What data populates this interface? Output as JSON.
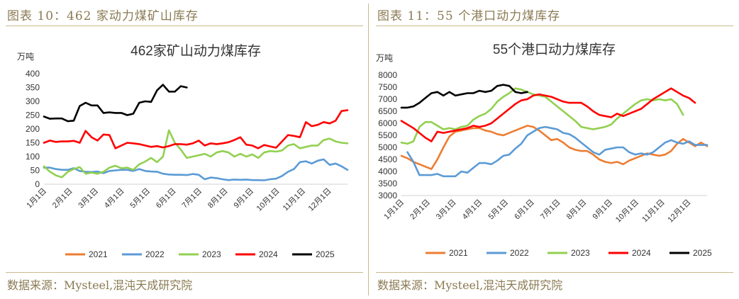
{
  "colors": {
    "2021": "#ed7d31",
    "2022": "#5b9bd5",
    "2023": "#92d050",
    "2024": "#ff0000",
    "2025": "#000000",
    "frame": "#c9b98a",
    "caption": "#8a7a52"
  },
  "left": {
    "figure_label": "图表 10：462 家动力煤矿山库存",
    "source": "数据来源：Mysteel,混沌天成研究院",
    "chart_data": {
      "type": "line",
      "title": "462家矿山动力煤库存",
      "ylabel": "万吨",
      "ylim": [
        0,
        400
      ],
      "yticks": [
        0,
        50,
        100,
        150,
        200,
        250,
        300,
        350,
        400
      ],
      "xtick_labels": [
        "1月1日",
        "2月1日",
        "3月1日",
        "4月1日",
        "5月1日",
        "6月1日",
        "7月1日",
        "8月1日",
        "9月1日",
        "10月1日",
        "11月1日",
        "12月1日"
      ],
      "week_count": 52,
      "legend": [
        "2021",
        "2022",
        "2023",
        "2024",
        "2025"
      ],
      "series": [
        {
          "name": "2021",
          "values": []
        },
        {
          "name": "2022",
          "values": [
            60,
            60,
            55,
            52,
            52,
            58,
            48,
            45,
            44,
            46,
            40,
            48,
            50,
            52,
            52,
            48,
            55,
            48,
            46,
            45,
            38,
            35,
            34,
            34,
            33,
            37,
            34,
            18,
            24,
            22,
            18,
            15,
            17,
            16,
            17,
            15,
            15,
            14,
            18,
            20,
            30,
            45,
            55,
            80,
            83,
            75,
            85,
            90,
            70,
            75,
            65,
            52
          ]
        },
        {
          "name": "2023",
          "values": [
            65,
            45,
            32,
            25,
            45,
            55,
            62,
            38,
            42,
            38,
            45,
            60,
            67,
            58,
            60,
            52,
            72,
            82,
            95,
            80,
            100,
            195,
            150,
            125,
            95,
            100,
            105,
            110,
            100,
            115,
            120,
            115,
            100,
            110,
            100,
            108,
            95,
            115,
            120,
            118,
            122,
            140,
            145,
            130,
            135,
            140,
            140,
            160,
            165,
            155,
            150,
            148
          ]
        },
        {
          "name": "2024",
          "values": [
            150,
            158,
            153,
            155,
            155,
            157,
            150,
            193,
            170,
            158,
            180,
            178,
            130,
            140,
            150,
            148,
            145,
            140,
            135,
            138,
            133,
            138,
            145,
            145,
            143,
            148,
            158,
            140,
            148,
            145,
            148,
            152,
            160,
            170,
            143,
            140,
            130,
            142,
            137,
            132,
            155,
            178,
            175,
            170,
            225,
            210,
            215,
            225,
            220,
            230,
            265,
            268
          ]
        },
        {
          "name": "2025",
          "values": [
            245,
            237,
            238,
            238,
            228,
            230,
            283,
            295,
            285,
            285,
            258,
            260,
            258,
            258,
            250,
            255,
            295,
            300,
            298,
            340,
            360,
            335,
            335,
            355,
            350
          ]
        }
      ]
    }
  },
  "right": {
    "figure_label": "图表 11：55 个港口动力煤库存",
    "source": "数据来源：Mysteel,混沌天成研究院",
    "chart_data": {
      "type": "line",
      "title": "55个港口动力煤库存",
      "ylabel": "万吨",
      "ylim": [
        3000,
        8000
      ],
      "yticks": [
        3000,
        3500,
        4000,
        4500,
        5000,
        5500,
        6000,
        6500,
        7000,
        7500,
        8000
      ],
      "xtick_labels": [
        "1月1日",
        "2月1日",
        "3月1日",
        "4月1日",
        "5月1日",
        "6月1日",
        "7月1日",
        "8月1日",
        "9月1日",
        "10月1日",
        "11月1日",
        "12月1日"
      ],
      "week_count": 52,
      "legend": [
        "2021",
        "2022",
        "2023",
        "2024",
        "2025"
      ],
      "series": [
        {
          "name": "2021",
          "values": [
            4650,
            4550,
            4400,
            4300,
            4200,
            4100,
            4500,
            5000,
            5450,
            5650,
            5700,
            5750,
            5800,
            5800,
            5700,
            5650,
            5550,
            5500,
            5600,
            5700,
            5800,
            5900,
            5850,
            5700,
            5500,
            5300,
            5350,
            5200,
            5000,
            4900,
            4850,
            4850,
            4700,
            4500,
            4400,
            4350,
            4400,
            4300,
            4450,
            4550,
            4650,
            4750,
            4700,
            4650,
            4700,
            4850,
            5150,
            5350,
            5200,
            5050,
            5200,
            5050
          ]
        },
        {
          "name": "2022",
          "values": [
            null,
            4800,
            4400,
            3850,
            3850,
            3850,
            3900,
            3800,
            3800,
            3800,
            4000,
            3950,
            4150,
            4350,
            4350,
            4300,
            4450,
            4650,
            4700,
            4950,
            5150,
            5500,
            5650,
            5800,
            5850,
            5800,
            5750,
            5600,
            5550,
            5400,
            5200,
            5000,
            4800,
            4700,
            4900,
            4950,
            5000,
            5000,
            4800,
            4700,
            4750,
            4700,
            4800,
            5000,
            5200,
            5300,
            5200,
            5150,
            5250,
            5100,
            5100,
            5100
          ]
        },
        {
          "name": "2023",
          "values": [
            5200,
            5150,
            5250,
            5850,
            6050,
            6050,
            5900,
            5750,
            5800,
            5750,
            5850,
            5900,
            6150,
            6300,
            6400,
            6600,
            6900,
            7100,
            7250,
            7450,
            7400,
            7300,
            7200,
            7150,
            7100,
            6900,
            6700,
            6500,
            6300,
            6100,
            5850,
            5800,
            5750,
            5800,
            5850,
            5950,
            6200,
            6400,
            6600,
            6800,
            6950,
            7000,
            6950,
            7000,
            6950,
            7000,
            6800,
            6350,
            null,
            null,
            null,
            null
          ]
        },
        {
          "name": "2024",
          "values": [
            6100,
            5950,
            5800,
            5600,
            5400,
            5250,
            5650,
            5600,
            5650,
            5700,
            5750,
            5800,
            5900,
            5850,
            5900,
            6000,
            6200,
            6400,
            6600,
            6800,
            6950,
            7000,
            7150,
            7200,
            7150,
            7100,
            7000,
            6900,
            6850,
            6850,
            6850,
            6700,
            6500,
            6350,
            6300,
            6250,
            6400,
            6300,
            6400,
            6500,
            6600,
            6800,
            7000,
            7150,
            7300,
            7450,
            7300,
            7150,
            7050,
            6850,
            null,
            null
          ]
        },
        {
          "name": "2025",
          "values": [
            6650,
            6650,
            6700,
            6850,
            7050,
            7250,
            7300,
            7150,
            7300,
            7150,
            7200,
            7250,
            7250,
            7350,
            7300,
            7350,
            7550,
            7600,
            7550,
            7300,
            7250,
            7300
          ]
        }
      ]
    }
  }
}
